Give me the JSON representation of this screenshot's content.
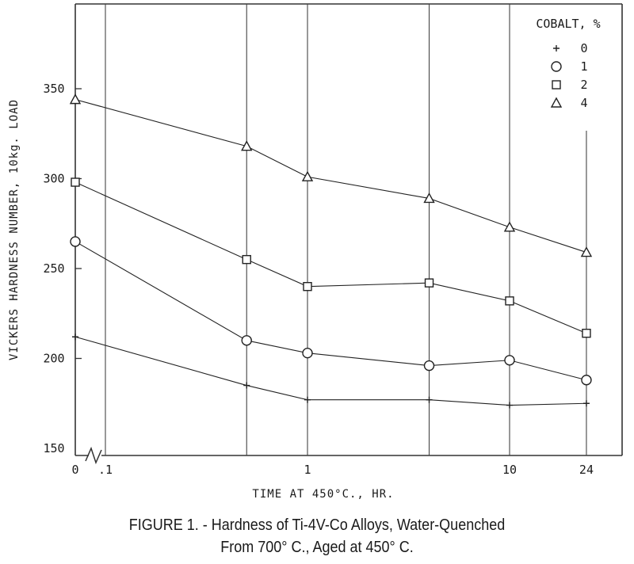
{
  "chart_data": {
    "type": "line",
    "ylabel": "VICKERS HARDNESS NUMBER, 10kg. LOAD",
    "xlabel": "TIME AT 450°C., HR.",
    "ylim": [
      150,
      390
    ],
    "y_ticks": [
      150,
      200,
      250,
      300,
      350
    ],
    "x_scale": "log (broken at 0)",
    "x_ticks": [
      {
        "label": "0",
        "value": 0
      },
      {
        "label": ".1",
        "value": 0.1
      },
      {
        "label": "1",
        "value": 1
      },
      {
        "label": "10",
        "value": 10
      },
      {
        "label": "24",
        "value": 24
      }
    ],
    "x": [
      0,
      0.5,
      1,
      4,
      10,
      24
    ],
    "legend_title": "COBALT, %",
    "legend_position": "top-right",
    "grid": "vertical lines at data times",
    "series": [
      {
        "name": "0",
        "marker": "plus",
        "values": [
          212,
          185,
          177,
          177,
          174,
          175
        ]
      },
      {
        "name": "1",
        "marker": "circle",
        "values": [
          265,
          210,
          203,
          196,
          199,
          188
        ]
      },
      {
        "name": "2",
        "marker": "square",
        "values": [
          298,
          255,
          240,
          242,
          232,
          214
        ]
      },
      {
        "name": "4",
        "marker": "triangle",
        "values": [
          344,
          318,
          301,
          289,
          273,
          259
        ]
      }
    ]
  },
  "caption": {
    "line1": "FIGURE 1. - Hardness of Ti-4V-Co Alloys, Water-Quenched",
    "line2": "From 700° C., Aged at 450° C."
  }
}
